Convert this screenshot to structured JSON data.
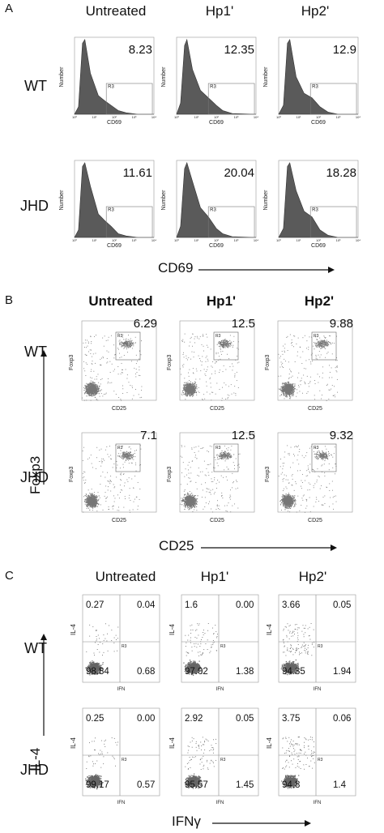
{
  "panel_a": {
    "letter": "A",
    "columns": [
      "Untreated",
      "Hp1'",
      "Hp2'"
    ],
    "rows": [
      "WT",
      "JHD"
    ],
    "percentages": [
      [
        "8.23",
        "12.35",
        "12.9"
      ],
      [
        "11.61",
        "20.04",
        "18.28"
      ]
    ],
    "y_axis": "Number",
    "x_axis": "CD69",
    "gate": "R3",
    "bottom_label": "CD69"
  },
  "panel_b": {
    "letter": "B",
    "columns": [
      "Untreated",
      "Hp1'",
      "Hp2'"
    ],
    "rows": [
      "WT",
      "JHD"
    ],
    "percentages": [
      [
        "6.29",
        "12.5",
        "9.88"
      ],
      [
        "7.1",
        "12.5",
        "9.32"
      ]
    ],
    "y_axis": "Foxp3",
    "x_axis": "CD25",
    "gate": "R3",
    "vertical_label": "Foxp3",
    "bottom_label": "CD25"
  },
  "panel_c": {
    "letter": "C",
    "columns": [
      "Untreated",
      "Hp1'",
      "Hp2'"
    ],
    "rows": [
      "WT",
      "JHD"
    ],
    "quadrants": [
      [
        {
          "ul": "0.27",
          "ur": "0.04",
          "ll": "98.84",
          "lr": "0.68"
        },
        {
          "ul": "1.6",
          "ur": "0.00",
          "ll": "97.02",
          "lr": "1.38"
        },
        {
          "ul": "3.66",
          "ur": "0.05",
          "ll": "94.35",
          "lr": "1.94"
        }
      ],
      [
        {
          "ul": "0.25",
          "ur": "0.00",
          "ll": "99.17",
          "lr": "0.57"
        },
        {
          "ul": "2.92",
          "ur": "0.05",
          "ll": "95.57",
          "lr": "1.45"
        },
        {
          "ul": "3.75",
          "ur": "0.06",
          "ll": "94.8",
          "lr": "1.4"
        }
      ]
    ],
    "y_axis": "IL-4",
    "x_axis": "IFN",
    "gate": "R3",
    "vertical_label": "IL-4",
    "bottom_label": "IFNγ"
  }
}
